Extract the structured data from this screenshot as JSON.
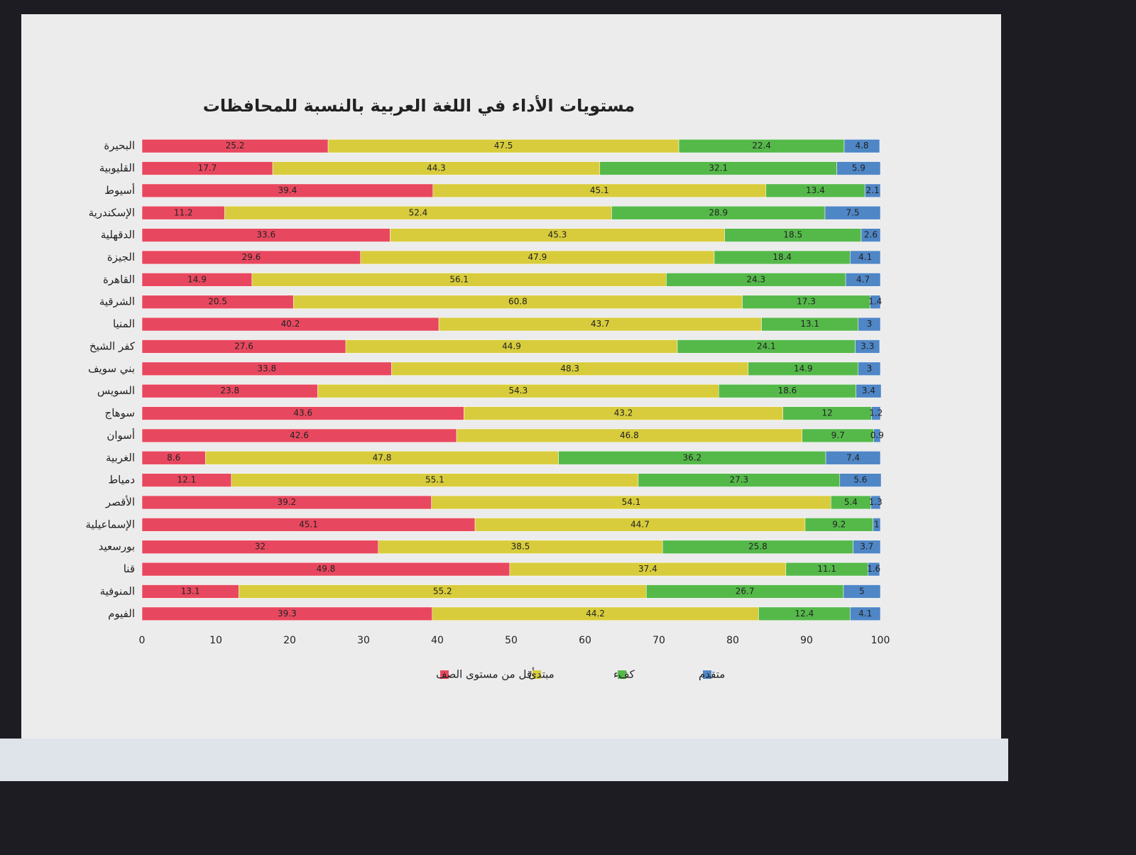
{
  "chart_data": {
    "type": "bar",
    "orientation": "horizontal",
    "stacked": true,
    "title": "مستويات الأداء في اللغة العربية بالنسبة للمحافظات",
    "categories": [
      "البحيرة",
      "القليوبية",
      "أسيوط",
      "الإسكندرية",
      "الدقهلية",
      "الجيزة",
      "القاهرة",
      "الشرقية",
      "المنيا",
      "كفر الشيخ",
      "بني سويف",
      "السويس",
      "سوهاج",
      "أسوان",
      "الغربية",
      "دمياط",
      "الأقصر",
      "الإسماعيلية",
      "بورسعيد",
      "قنا",
      "المنوفية",
      "الفيوم"
    ],
    "series": [
      {
        "name": "أقل من مستوى الصف",
        "color": "#e8485f",
        "values": [
          25.2,
          17.7,
          39.4,
          11.2,
          33.6,
          29.6,
          14.9,
          20.5,
          40.2,
          27.6,
          33.8,
          23.8,
          43.6,
          42.6,
          8.6,
          12.1,
          39.2,
          45.1,
          32,
          49.8,
          13.1,
          39.3
        ]
      },
      {
        "name": "مبتدئ",
        "color": "#d8cc3c",
        "values": [
          47.5,
          44.3,
          45.1,
          52.4,
          45.3,
          47.9,
          56.1,
          60.8,
          43.7,
          44.9,
          48.3,
          54.3,
          43.2,
          46.8,
          47.8,
          55.1,
          54.1,
          44.7,
          38.5,
          37.4,
          55.2,
          44.2
        ]
      },
      {
        "name": "كفء",
        "color": "#55b94a",
        "values": [
          22.4,
          32.1,
          13.4,
          28.9,
          18.5,
          18.4,
          24.3,
          17.3,
          13.1,
          24.1,
          14.9,
          18.6,
          12,
          9.7,
          36.2,
          27.3,
          5.4,
          9.2,
          25.8,
          11.1,
          26.7,
          12.4
        ]
      },
      {
        "name": "متقدم",
        "color": "#4f86c6",
        "values": [
          4.8,
          5.9,
          2.1,
          7.5,
          2.6,
          4.1,
          4.7,
          1.4,
          3,
          3.3,
          3,
          3.4,
          1.2,
          0.9,
          7.4,
          5.6,
          1.3,
          1,
          3.7,
          1.6,
          5,
          4.1
        ]
      }
    ],
    "xlim": [
      0,
      100
    ],
    "xticks": [
      0,
      10,
      20,
      30,
      40,
      50,
      60,
      70,
      80,
      90,
      100
    ],
    "grid": false
  }
}
